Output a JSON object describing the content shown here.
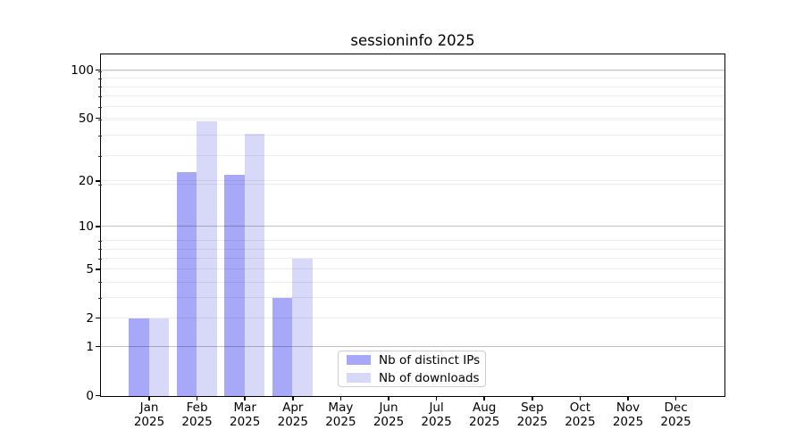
{
  "chart_data": {
    "type": "bar",
    "title": "sessioninfo 2025",
    "categories": [
      "Jan",
      "Feb",
      "Mar",
      "Apr",
      "May",
      "Jun",
      "Jul",
      "Aug",
      "Sep",
      "Oct",
      "Nov",
      "Dec"
    ],
    "category_year": "2025",
    "series": [
      {
        "name": "Nb of distinct IPs",
        "color": "#a8a8f8",
        "values": [
          2,
          23,
          22,
          3,
          0,
          0,
          0,
          0,
          0,
          0,
          0,
          0
        ]
      },
      {
        "name": "Nb of downloads",
        "color": "#d8d8f8",
        "values": [
          2,
          48,
          40,
          6,
          0,
          0,
          0,
          0,
          0,
          0,
          0,
          0
        ]
      }
    ],
    "yscale": "log10(1+x)",
    "yticks": [
      0,
      1,
      2,
      5,
      10,
      20,
      50,
      100
    ],
    "ylim": [
      0,
      125
    ],
    "grid": "horizontal major+minor, drawn over bars",
    "legend_position": "lower center inside plot"
  }
}
